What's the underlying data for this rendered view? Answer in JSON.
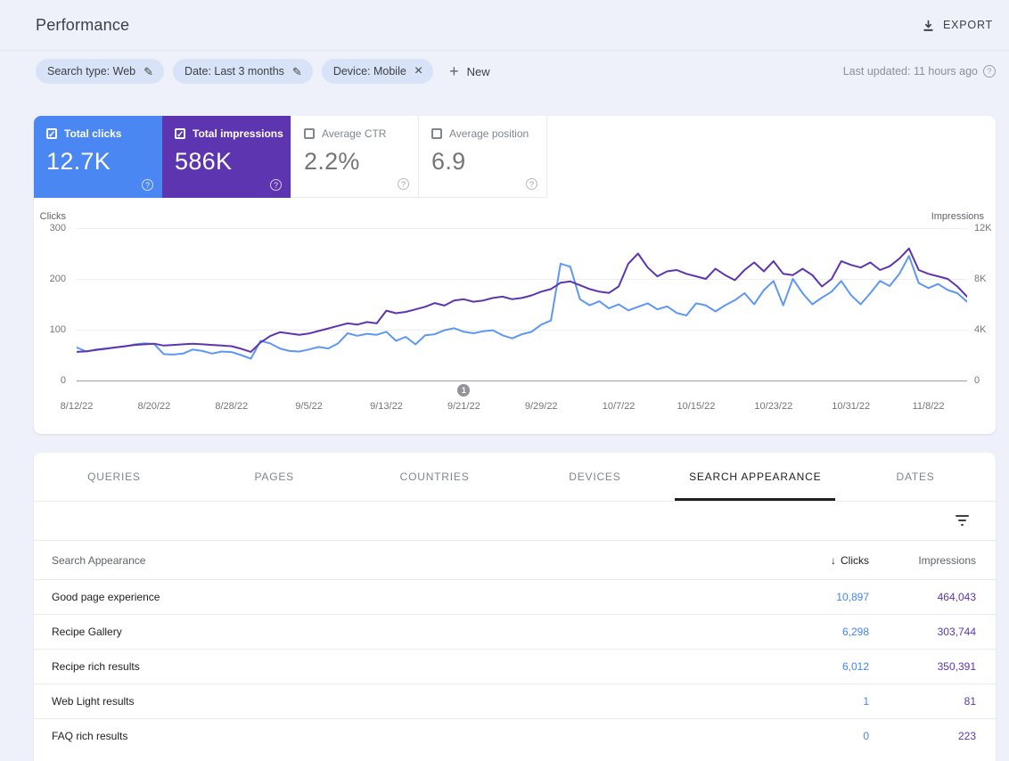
{
  "header": {
    "title": "Performance",
    "export_label": "EXPORT"
  },
  "filters": {
    "chips": [
      {
        "label": "Search type: Web",
        "icon": "edit"
      },
      {
        "label": "Date: Last 3 months",
        "icon": "edit"
      },
      {
        "label": "Device: Mobile",
        "icon": "close"
      }
    ],
    "new_label": "New",
    "last_updated": "Last updated: 11 hours ago"
  },
  "metrics": [
    {
      "label": "Total clicks",
      "value": "12.7K",
      "checked": true,
      "color": "#4b87f2"
    },
    {
      "label": "Total impressions",
      "value": "586K",
      "checked": true,
      "color": "#5e35b1"
    },
    {
      "label": "Average CTR",
      "value": "2.2%",
      "checked": false,
      "color": ""
    },
    {
      "label": "Average position",
      "value": "6.9",
      "checked": false,
      "color": ""
    }
  ],
  "chart_data": {
    "type": "line",
    "x_start_date": "8/12/22",
    "x_end_date": "11/12/22",
    "tick_interval_days": 8,
    "x_tick_labels": [
      "8/12/22",
      "8/20/22",
      "8/28/22",
      "9/5/22",
      "9/13/22",
      "9/21/22",
      "9/29/22",
      "10/7/22",
      "10/15/22",
      "10/23/22",
      "10/31/22",
      "11/8/22"
    ],
    "left_axis": {
      "label": "Clicks",
      "ticks_top_to_bottom": [
        "300",
        "200",
        "100",
        "0"
      ],
      "range": [
        0,
        300
      ]
    },
    "right_axis": {
      "label": "Impressions",
      "ticks_top_to_bottom": [
        "12K",
        "8K",
        "4K",
        "0"
      ],
      "range": [
        0,
        12000
      ]
    },
    "grid": true,
    "annotation": {
      "label": "1",
      "day_index": 40,
      "at_date": "9/21/22"
    },
    "series": [
      {
        "name": "Clicks",
        "axis": "left",
        "color": "#5e97f6",
        "values": [
          65,
          57,
          61,
          63,
          65,
          67,
          71,
          73,
          72,
          52,
          51,
          53,
          61,
          58,
          53,
          57,
          56,
          50,
          43,
          78,
          73,
          63,
          58,
          57,
          61,
          66,
          63,
          73,
          93,
          88,
          92,
          90,
          96,
          78,
          86,
          71,
          89,
          91,
          99,
          103,
          96,
          93,
          97,
          99,
          89,
          83,
          91,
          96,
          110,
          118,
          230,
          224,
          160,
          148,
          156,
          142,
          150,
          138,
          145,
          152,
          140,
          146,
          133,
          128,
          152,
          148,
          136,
          148,
          158,
          172,
          150,
          178,
          196,
          148,
          200,
          172,
          150,
          163,
          175,
          196,
          168,
          150,
          172,
          196,
          186,
          210,
          245,
          192,
          182,
          190,
          178,
          172,
          155
        ]
      },
      {
        "name": "Impressions",
        "axis": "right",
        "color": "#5e35b1",
        "values": [
          2250,
          2300,
          2400,
          2500,
          2600,
          2700,
          2800,
          2850,
          2900,
          2750,
          2800,
          2850,
          2900,
          2850,
          2800,
          2750,
          2700,
          2500,
          2250,
          3000,
          3500,
          3800,
          3700,
          3600,
          3700,
          3900,
          4100,
          4300,
          4500,
          4400,
          4600,
          4500,
          5500,
          5300,
          5400,
          5600,
          5800,
          6100,
          5900,
          6300,
          6400,
          6200,
          6300,
          6500,
          6600,
          6400,
          6500,
          6700,
          7000,
          7200,
          7700,
          7800,
          7500,
          7200,
          7000,
          6900,
          7400,
          9200,
          10000,
          8900,
          8200,
          8600,
          8700,
          8400,
          8200,
          8000,
          8800,
          8300,
          7900,
          8700,
          9300,
          8600,
          9400,
          8400,
          8300,
          8800,
          8300,
          7400,
          8000,
          9400,
          9100,
          8900,
          9300,
          8700,
          9000,
          9600,
          10400,
          8700,
          8400,
          8200,
          8000,
          7400,
          6600
        ]
      }
    ]
  },
  "tabs": {
    "items": [
      "QUERIES",
      "PAGES",
      "COUNTRIES",
      "DEVICES",
      "SEARCH APPEARANCE",
      "DATES"
    ],
    "active_index": 4
  },
  "table": {
    "dimension_header": "Search Appearance",
    "clicks_header": "Clicks",
    "impressions_header": "Impressions",
    "sorted_by": "Clicks",
    "sort_direction": "desc",
    "rows": [
      {
        "dimension": "Good page experience",
        "clicks": "10,897",
        "impressions": "464,043"
      },
      {
        "dimension": "Recipe Gallery",
        "clicks": "6,298",
        "impressions": "303,744"
      },
      {
        "dimension": "Recipe rich results",
        "clicks": "6,012",
        "impressions": "350,391"
      },
      {
        "dimension": "Web Light results",
        "clicks": "1",
        "impressions": "81"
      },
      {
        "dimension": "FAQ rich results",
        "clicks": "0",
        "impressions": "223"
      }
    ]
  },
  "colors": {
    "page_bg": "#eef1f9",
    "clicks_card": "#4b87f2",
    "impressions_card": "#5e35b1",
    "clicks_line": "#5e97f6",
    "impressions_line": "#5e35b1",
    "clicks_value_text": "#4285f4",
    "impressions_value_text": "#5e35b1",
    "chip_bg": "#d9e3f8"
  }
}
